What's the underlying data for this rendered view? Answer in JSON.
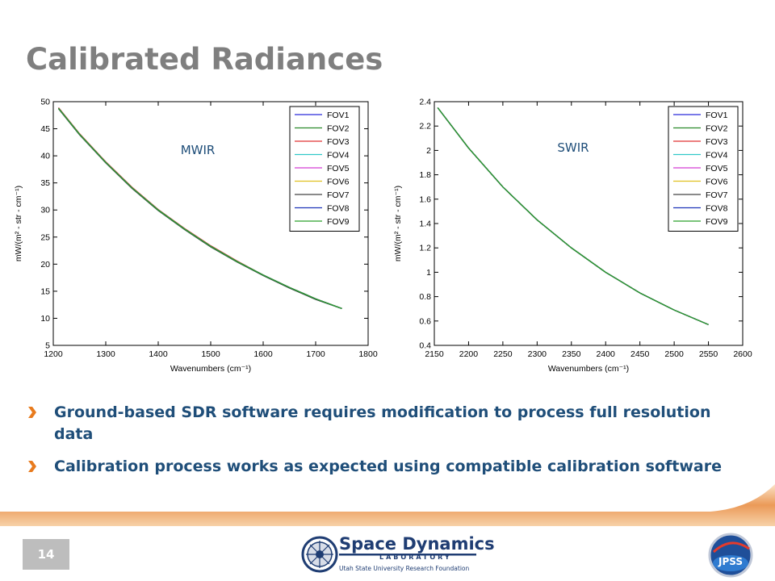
{
  "slide": {
    "title": "Calibrated Radiances",
    "page_number": "14"
  },
  "bullets": [
    "Ground-based SDR software requires modification to process full resolution data",
    "Calibration process works as expected using compatible calibration software"
  ],
  "logos": {
    "sdl": {
      "name": "Space Dynamics",
      "subtitle": "LABORATORY",
      "foundation": "Utah State University Research Foundation"
    },
    "jpss": {
      "text": "JPSS"
    }
  },
  "legend_colors": [
    "#2b2bd9",
    "#2a8a2a",
    "#e03030",
    "#30c8c8",
    "#d43fd4",
    "#e0c020",
    "#444444",
    "#1d33b8",
    "#2aa02a"
  ],
  "chart_data": [
    {
      "type": "line",
      "annotation": "MWIR",
      "xlabel": "Wavenumbers (cm⁻¹)",
      "ylabel": "mW/(m² - str - cm⁻¹)",
      "xlim": [
        1200,
        1800
      ],
      "ylim": [
        5,
        50
      ],
      "xticks": [
        1200,
        1300,
        1400,
        1500,
        1600,
        1700,
        1800
      ],
      "yticks": [
        5,
        10,
        15,
        20,
        25,
        30,
        35,
        40,
        45,
        50
      ],
      "legend_position": "top-right",
      "grid": false,
      "x": [
        1210,
        1250,
        1300,
        1350,
        1400,
        1450,
        1500,
        1550,
        1600,
        1650,
        1700,
        1750
      ],
      "series": [
        {
          "name": "FOV1",
          "values": [
            48.8,
            44.0,
            38.8,
            34.1,
            30.0,
            26.5,
            23.3,
            20.5,
            18.0,
            15.7,
            13.6,
            11.8
          ]
        },
        {
          "name": "FOV2",
          "values": [
            48.7,
            43.9,
            38.7,
            34.0,
            29.9,
            26.4,
            23.2,
            20.4,
            17.9,
            15.6,
            13.5,
            11.8
          ]
        },
        {
          "name": "FOV3",
          "values": [
            48.9,
            44.1,
            38.9,
            34.2,
            30.1,
            26.6,
            23.4,
            20.6,
            18.0,
            15.7,
            13.6,
            11.8
          ]
        },
        {
          "name": "FOV4",
          "values": [
            48.8,
            44.0,
            38.8,
            34.1,
            30.0,
            26.5,
            23.3,
            20.5,
            18.0,
            15.7,
            13.6,
            11.8
          ]
        },
        {
          "name": "FOV5",
          "values": [
            48.8,
            44.0,
            38.8,
            34.1,
            30.0,
            26.5,
            23.3,
            20.5,
            18.0,
            15.7,
            13.6,
            11.8
          ]
        },
        {
          "name": "FOV6",
          "values": [
            48.8,
            44.0,
            38.8,
            34.1,
            30.0,
            26.5,
            23.3,
            20.5,
            18.0,
            15.7,
            13.6,
            11.8
          ]
        },
        {
          "name": "FOV7",
          "values": [
            48.7,
            43.9,
            38.7,
            34.0,
            29.9,
            26.4,
            23.2,
            20.4,
            17.9,
            15.6,
            13.5,
            11.8
          ]
        },
        {
          "name": "FOV8",
          "values": [
            48.8,
            44.0,
            38.8,
            34.1,
            30.0,
            26.5,
            23.3,
            20.5,
            18.0,
            15.7,
            13.6,
            11.8
          ]
        },
        {
          "name": "FOV9",
          "values": [
            48.8,
            44.0,
            38.8,
            34.1,
            30.0,
            26.5,
            23.3,
            20.5,
            18.0,
            15.7,
            13.6,
            11.8
          ]
        }
      ]
    },
    {
      "type": "line",
      "annotation": "SWIR",
      "xlabel": "Wavenumbers (cm⁻¹)",
      "ylabel": "mW/(m² - str - cm⁻¹)",
      "xlim": [
        2150,
        2600
      ],
      "ylim": [
        0.4,
        2.4
      ],
      "xticks": [
        2150,
        2200,
        2250,
        2300,
        2350,
        2400,
        2450,
        2500,
        2550,
        2600
      ],
      "yticks": [
        0.4,
        0.6,
        0.8,
        1.0,
        1.2,
        1.4,
        1.6,
        1.8,
        2.0,
        2.2,
        2.4
      ],
      "yticklabels": [
        "0.4",
        "0.6",
        "0.8",
        "1",
        "1.2",
        "1.4",
        "1.6",
        "1.8",
        "2",
        "2.2",
        "2.4"
      ],
      "legend_position": "top-right",
      "grid": false,
      "x": [
        2155,
        2200,
        2250,
        2300,
        2350,
        2400,
        2450,
        2500,
        2550
      ],
      "series": [
        {
          "name": "FOV1",
          "values": [
            2.35,
            2.02,
            1.7,
            1.43,
            1.2,
            1.0,
            0.83,
            0.69,
            0.57
          ]
        },
        {
          "name": "FOV2",
          "values": [
            2.35,
            2.02,
            1.7,
            1.43,
            1.2,
            1.0,
            0.83,
            0.69,
            0.57
          ]
        },
        {
          "name": "FOV3",
          "values": [
            2.35,
            2.02,
            1.7,
            1.43,
            1.2,
            1.0,
            0.83,
            0.69,
            0.57
          ]
        },
        {
          "name": "FOV4",
          "values": [
            2.35,
            2.02,
            1.7,
            1.43,
            1.2,
            1.0,
            0.83,
            0.69,
            0.57
          ]
        },
        {
          "name": "FOV5",
          "values": [
            2.35,
            2.02,
            1.7,
            1.43,
            1.2,
            1.0,
            0.83,
            0.69,
            0.57
          ]
        },
        {
          "name": "FOV6",
          "values": [
            2.35,
            2.02,
            1.7,
            1.43,
            1.2,
            1.0,
            0.83,
            0.69,
            0.57
          ]
        },
        {
          "name": "FOV7",
          "values": [
            2.35,
            2.02,
            1.7,
            1.43,
            1.2,
            1.0,
            0.83,
            0.69,
            0.57
          ]
        },
        {
          "name": "FOV8",
          "values": [
            2.35,
            2.02,
            1.7,
            1.43,
            1.2,
            1.0,
            0.83,
            0.69,
            0.57
          ]
        },
        {
          "name": "FOV9",
          "values": [
            2.35,
            2.02,
            1.7,
            1.43,
            1.2,
            1.0,
            0.83,
            0.69,
            0.57
          ]
        }
      ]
    }
  ]
}
